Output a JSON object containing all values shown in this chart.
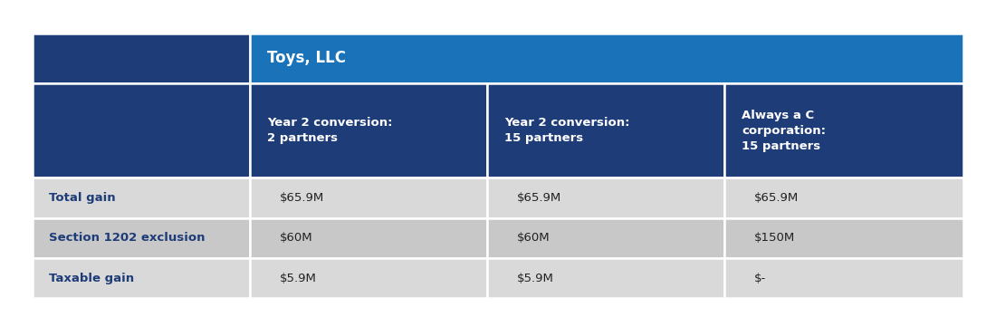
{
  "title": "Toys, LLC",
  "col_headers": [
    "Year 2 conversion:\n2 partners",
    "Year 2 conversion:\n15 partners",
    "Always a C\ncorporation:\n15 partners"
  ],
  "row_labels": [
    "Total gain",
    "Section 1202 exclusion",
    "Taxable gain"
  ],
  "cell_data": [
    [
      "$65.9M",
      "$65.9M",
      "$65.9M"
    ],
    [
      "$60M",
      "$60M",
      "$150M"
    ],
    [
      "$5.9M",
      "$5.9M",
      "$-"
    ]
  ],
  "header_bg": "#1a72b8",
  "subheader_bg": "#1e3c78",
  "row_bg_odd": "#d9d9d9",
  "row_bg_even": "#c8c8c8",
  "label_color": "#1e3c78",
  "header_text_color": "#ffffff",
  "cell_text_color": "#222222",
  "border_color": "#ffffff",
  "background_color": "#ffffff",
  "fig_width": 11.0,
  "fig_height": 3.5
}
